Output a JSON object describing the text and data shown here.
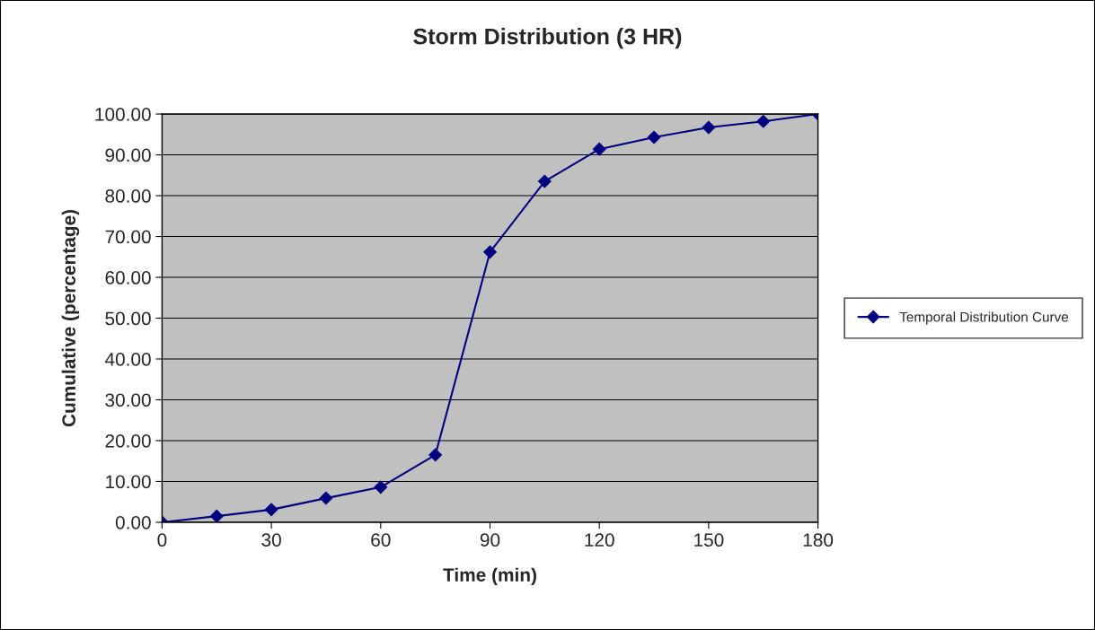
{
  "chart_data": {
    "type": "line",
    "title": "Storm Distribution (3 HR)",
    "xlabel": "Time (min)",
    "ylabel": "Cumulative (percentage)",
    "x": [
      0,
      15,
      30,
      45,
      60,
      75,
      90,
      105,
      120,
      135,
      150,
      165,
      180
    ],
    "series": [
      {
        "name": "Temporal Distribution Curve",
        "color": "#000080",
        "values": [
          0,
          1.5,
          3.1,
          5.9,
          8.6,
          16.5,
          66.2,
          83.5,
          91.4,
          94.3,
          96.7,
          98.2,
          100
        ]
      }
    ],
    "xlim": [
      0,
      180
    ],
    "xticks": [
      0,
      30,
      60,
      90,
      120,
      150,
      180
    ],
    "ylim": [
      0,
      100
    ],
    "yticks": [
      {
        "value": 0,
        "label": "0.00"
      },
      {
        "value": 10,
        "label": "10.00"
      },
      {
        "value": 20,
        "label": "20.00"
      },
      {
        "value": 30,
        "label": "30.00"
      },
      {
        "value": 40,
        "label": "40.00"
      },
      {
        "value": 50,
        "label": "50.00"
      },
      {
        "value": 60,
        "label": "60.00"
      },
      {
        "value": 70,
        "label": "70.00"
      },
      {
        "value": 80,
        "label": "80.00"
      },
      {
        "value": 90,
        "label": "90.00"
      },
      {
        "value": 100,
        "label": "100.00"
      }
    ],
    "grid": "y",
    "legend": "right",
    "marker": "diamond",
    "line_style": "solid"
  }
}
